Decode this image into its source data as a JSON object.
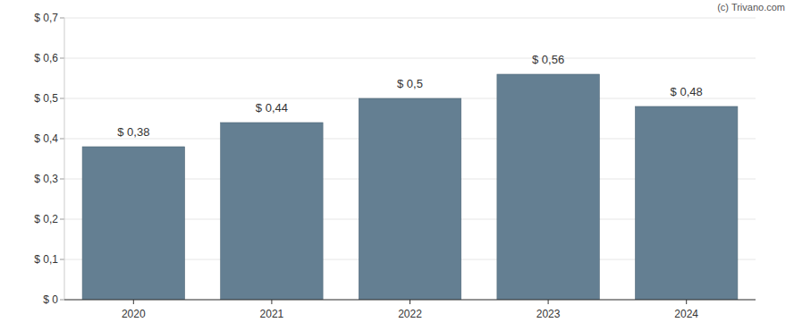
{
  "chart_data": {
    "type": "bar",
    "categories": [
      "2020",
      "2021",
      "2022",
      "2023",
      "2024"
    ],
    "values": [
      0.38,
      0.44,
      0.5,
      0.56,
      0.48
    ],
    "value_labels": [
      "$ 0,38",
      "$ 0,44",
      "$ 0,5",
      "$ 0,56",
      "$ 0,48"
    ],
    "data_labels": true,
    "color": "#647f92",
    "ylim": [
      0,
      0.7
    ],
    "yticks": [
      {
        "value": 0,
        "label": "$ 0"
      },
      {
        "value": 0.1,
        "label": "$ 0,1"
      },
      {
        "value": 0.2,
        "label": "$ 0,2"
      },
      {
        "value": 0.3,
        "label": "$ 0,3"
      },
      {
        "value": 0.4,
        "label": "$ 0,4"
      },
      {
        "value": 0.5,
        "label": "$ 0,5"
      },
      {
        "value": 0.6,
        "label": "$ 0,6"
      },
      {
        "value": 0.7,
        "label": "$ 0,7"
      }
    ],
    "grid": true,
    "annotations": [
      "(c) Trivano.com"
    ]
  }
}
